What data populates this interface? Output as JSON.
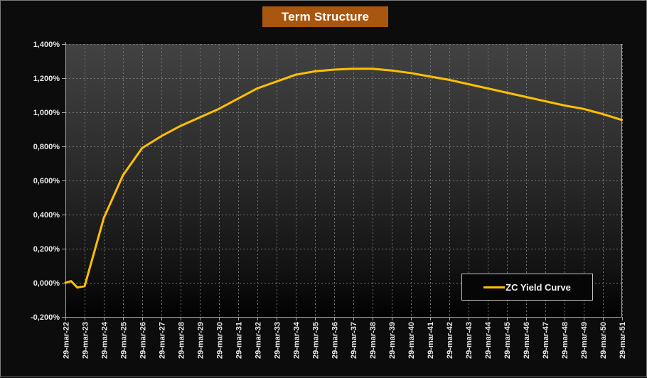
{
  "title": "Term Structure",
  "legend": {
    "label": "ZC Yield Curve"
  },
  "colors": {
    "accent": "#FFC000",
    "title_bg": "#A9560F",
    "outer_background": "#0C0C0C",
    "plot_gradient_top": "#424242",
    "plot_gradient_mid": "#2B2B2B",
    "plot_gradient_low": "#131313",
    "plot_gradient_bottom": "#010101",
    "grid": "#757575",
    "axis": "#A6A6A6",
    "label": "#E8E8E8"
  },
  "chart_data": {
    "type": "line",
    "title": "Term Structure",
    "xlabel": "",
    "ylabel": "",
    "ylim": [
      -0.2,
      1.4
    ],
    "grid": true,
    "legend_position": "inside-bottom-right",
    "x_label_rotation": -90,
    "categories": [
      "29-mar-22",
      "29-mar-23",
      "29-mar-24",
      "29-mar-25",
      "29-mar-26",
      "29-mar-27",
      "29-mar-28",
      "29-mar-29",
      "29-mar-30",
      "29-mar-31",
      "29-mar-32",
      "29-mar-33",
      "29-mar-34",
      "29-mar-35",
      "29-mar-36",
      "29-mar-37",
      "29-mar-38",
      "29-mar-39",
      "29-mar-40",
      "29-mar-41",
      "29-mar-42",
      "29-mar-43",
      "29-mar-44",
      "29-mar-45",
      "29-mar-46",
      "29-mar-47",
      "29-mar-48",
      "29-mar-49",
      "29-mar-50",
      "29-mar-51"
    ],
    "series": [
      {
        "name": "ZC Yield Curve",
        "color": "#FFC000",
        "values": [
          0.0,
          -0.02,
          0.38,
          0.63,
          0.79,
          0.86,
          0.92,
          0.97,
          1.02,
          1.08,
          1.14,
          1.18,
          1.22,
          1.24,
          1.25,
          1.255,
          1.255,
          1.245,
          1.23,
          1.21,
          1.19,
          1.165,
          1.14,
          1.115,
          1.09,
          1.065,
          1.04,
          1.02,
          0.99,
          0.955
        ]
      }
    ],
    "lead_detail_points": [
      [
        0,
        0.0
      ],
      [
        0.3,
        0.01
      ],
      [
        0.62,
        -0.028
      ],
      [
        1,
        -0.02
      ]
    ],
    "y_axis": {
      "ticks": [
        {
          "value": 1.4,
          "label": "1,400%"
        },
        {
          "value": 1.2,
          "label": "1,200%"
        },
        {
          "value": 1.0,
          "label": "1,000%"
        },
        {
          "value": 0.8,
          "label": "0,800%"
        },
        {
          "value": 0.6,
          "label": "0,600%"
        },
        {
          "value": 0.4,
          "label": "0,400%"
        },
        {
          "value": 0.2,
          "label": "0,200%"
        },
        {
          "value": 0.0,
          "label": "0,000%"
        },
        {
          "value": -0.2,
          "label": "-0,200%"
        }
      ]
    }
  }
}
